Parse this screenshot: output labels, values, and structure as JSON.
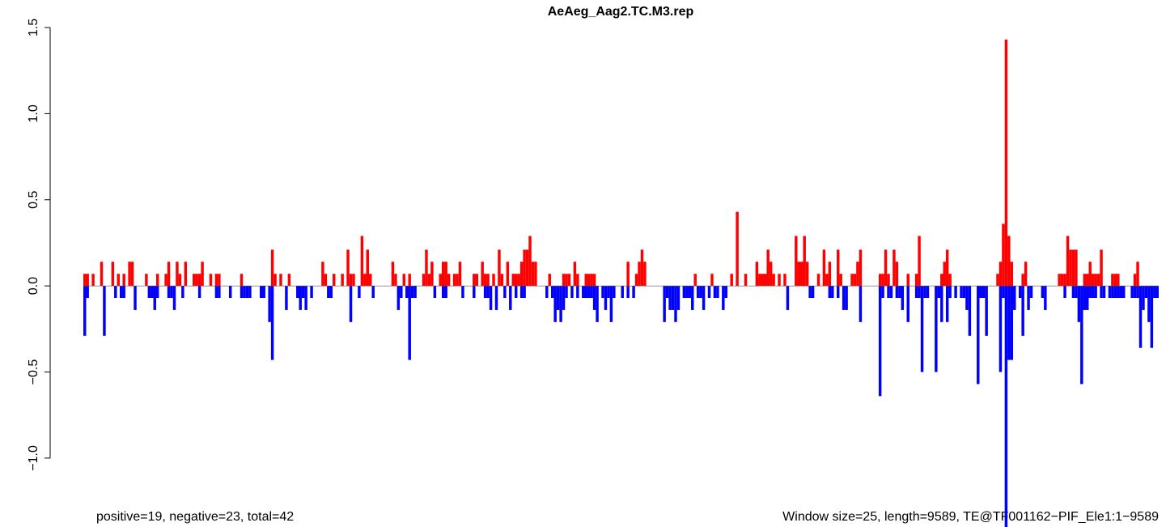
{
  "chart_data": {
    "type": "bar",
    "title": "AeAeg_Aag2.TC.M3.rep",
    "notes": [
      "positive=19, negative=23, total=42",
      "Window size=25, length=9589, TE@TF001162−PIF_Ele1:1−9589"
    ],
    "ylim": [
      -1.4,
      1.5
    ],
    "yticks": [
      {
        "value": -1.0,
        "label": "−1.0"
      },
      {
        "value": -0.5,
        "label": "−0.5"
      },
      {
        "value": 0,
        "label": "0.0"
      },
      {
        "value": 0.5,
        "label": "0.5"
      },
      {
        "value": 1.0,
        "label": "1.0"
      },
      {
        "value": 1.5,
        "label": "1.5"
      }
    ],
    "series": [
      {
        "color": "#ff0000",
        "values": [
          0.07,
          0.07,
          0,
          0.07,
          0,
          0,
          0.14,
          0,
          0,
          0,
          0.14,
          0,
          0.07,
          0,
          0.07,
          0,
          0.14,
          0.14,
          0,
          0,
          0,
          0,
          0.07,
          0,
          0,
          0,
          0.07,
          0,
          0,
          0.07,
          0.14,
          0,
          0,
          0.14,
          0.07,
          0,
          0.14,
          0,
          0,
          0.07,
          0.07,
          0.07,
          0.14,
          0,
          0,
          0.07,
          0,
          0.07,
          0.07,
          0,
          0,
          0,
          0,
          0,
          0,
          0,
          0.07,
          0,
          0,
          0,
          0,
          0,
          0,
          0,
          0,
          0,
          0,
          0.21,
          0.07,
          0,
          0.07,
          0,
          0,
          0.07,
          0,
          0,
          0,
          0,
          0,
          0,
          0,
          0,
          0,
          0,
          0,
          0.14,
          0.07,
          0,
          0,
          0.07,
          0,
          0,
          0.07,
          0,
          0.21,
          0.07,
          0.07,
          0,
          0,
          0.29,
          0.07,
          0.21,
          0.07,
          0,
          0,
          0,
          0,
          0,
          0,
          0,
          0.14,
          0.07,
          0,
          0,
          0.07,
          0,
          0.07,
          0,
          0,
          0,
          0,
          0.07,
          0.21,
          0.07,
          0.14,
          0,
          0,
          0.07,
          0.14,
          0.14,
          0.07,
          0,
          0.07,
          0.07,
          0.14,
          0,
          0,
          0,
          0,
          0.07,
          0.07,
          0,
          0.14,
          0.07,
          0.07,
          0,
          0.07,
          0,
          0.21,
          0.07,
          0,
          0.14,
          0,
          0.07,
          0.07,
          0.07,
          0.14,
          0.21,
          0.21,
          0.29,
          0.14,
          0.14,
          0,
          0,
          0,
          0,
          0.07,
          0,
          0,
          0,
          0,
          0.07,
          0.07,
          0.07,
          0,
          0.14,
          0.07,
          0,
          0,
          0.07,
          0.07,
          0.07,
          0.07,
          0,
          0,
          0,
          0,
          0,
          0,
          0,
          0,
          0,
          0,
          0,
          0.14,
          0,
          0,
          0.07,
          0.14,
          0.21,
          0.14,
          0,
          0,
          0,
          0,
          0,
          0,
          0,
          0,
          0,
          0,
          0,
          0,
          0,
          0,
          0,
          0,
          0,
          0.07,
          0,
          0,
          0,
          0,
          0,
          0.07,
          0,
          0,
          0,
          0,
          0,
          0,
          0.07,
          0,
          0.43,
          0,
          0,
          0.07,
          0,
          0,
          0,
          0.14,
          0.07,
          0.07,
          0.07,
          0.21,
          0.14,
          0.07,
          0,
          0.07,
          0,
          0.07,
          0,
          0,
          0,
          0.29,
          0.14,
          0.14,
          0.29,
          0.14,
          0,
          0,
          0,
          0.07,
          0,
          0.21,
          0.07,
          0.14,
          0,
          0,
          0.21,
          0.07,
          0,
          0,
          0,
          0.07,
          0.07,
          0.14,
          0.21,
          0,
          0,
          0,
          0,
          0,
          0,
          0.07,
          0.07,
          0.21,
          0.07,
          0,
          0.21,
          0.14,
          0,
          0,
          0,
          0.07,
          0,
          0,
          0.07,
          0.29,
          0,
          0,
          0,
          0,
          0,
          0,
          0,
          0.07,
          0.14,
          0.21,
          0.07,
          0,
          0,
          0,
          0,
          0,
          0,
          0,
          0,
          0,
          0,
          0,
          0,
          0,
          0,
          0,
          0,
          0.07,
          0.14,
          0.36,
          1.43,
          0.29,
          0.14,
          0,
          0,
          0,
          0.07,
          0.14,
          0,
          0,
          0,
          0,
          0,
          0,
          0,
          0,
          0,
          0,
          0,
          0.07,
          0.07,
          0.07,
          0.29,
          0.21,
          0.21,
          0.21,
          0,
          0,
          0.07,
          0.07,
          0.14,
          0.07,
          0.07,
          0.07,
          0.21,
          0,
          0,
          0,
          0.07,
          0.07,
          0.07,
          0,
          0,
          0,
          0,
          0,
          0.07,
          0.14,
          0,
          0,
          0,
          0,
          0,
          0,
          0
        ]
      },
      {
        "color": "#0000ff",
        "values": [
          -0.29,
          -0.07,
          0,
          0,
          0,
          0,
          0,
          -0.29,
          0,
          0,
          0,
          -0.07,
          0,
          -0.07,
          -0.07,
          0,
          0,
          0,
          -0.14,
          0,
          0,
          0,
          0,
          -0.07,
          -0.07,
          -0.14,
          -0.07,
          0,
          0,
          0,
          -0.07,
          -0.07,
          -0.14,
          0,
          0,
          -0.07,
          0,
          0,
          0,
          0,
          0,
          -0.07,
          0,
          0,
          0,
          0,
          0,
          -0.07,
          -0.07,
          0,
          0,
          0,
          -0.07,
          0,
          0,
          0,
          -0.07,
          -0.07,
          -0.07,
          -0.07,
          0,
          0,
          0,
          -0.07,
          -0.07,
          0,
          -0.21,
          -0.43,
          0,
          0,
          0,
          0,
          -0.14,
          0,
          0,
          0,
          -0.07,
          -0.14,
          -0.07,
          -0.14,
          0,
          -0.07,
          0,
          0,
          0,
          0,
          0,
          -0.07,
          -0.07,
          0,
          0,
          0,
          0,
          0,
          0,
          -0.21,
          0,
          0,
          -0.07,
          0,
          0,
          0,
          0,
          -0.07,
          0,
          0,
          0,
          0,
          0,
          0,
          0,
          0,
          -0.14,
          -0.07,
          0,
          -0.07,
          -0.43,
          -0.07,
          -0.07,
          0,
          0,
          0,
          0,
          0,
          0,
          -0.07,
          0,
          0,
          -0.07,
          -0.07,
          0,
          0,
          0,
          0,
          0,
          -0.07,
          0,
          0,
          0,
          -0.07,
          0,
          0,
          0,
          -0.07,
          -0.07,
          -0.14,
          0,
          -0.14,
          0,
          0,
          -0.07,
          0,
          -0.14,
          0,
          -0.07,
          0,
          -0.07,
          -0.07,
          0,
          0,
          0,
          0,
          0,
          0,
          0,
          -0.07,
          0,
          -0.07,
          -0.21,
          -0.14,
          -0.21,
          -0.14,
          -0.07,
          0,
          -0.07,
          0,
          -0.07,
          0,
          -0.07,
          -0.07,
          -0.07,
          -0.07,
          -0.14,
          -0.21,
          0,
          -0.07,
          -0.14,
          -0.07,
          -0.21,
          -0.07,
          0,
          0,
          -0.07,
          0,
          -0.07,
          0,
          -0.07,
          0,
          0,
          0,
          0,
          0,
          0,
          0,
          0,
          0,
          0,
          -0.21,
          -0.07,
          -0.14,
          -0.14,
          -0.21,
          -0.14,
          0,
          -0.07,
          -0.07,
          -0.07,
          -0.14,
          0,
          -0.07,
          -0.07,
          -0.14,
          0,
          -0.07,
          0,
          -0.07,
          -0.07,
          0,
          -0.14,
          -0.07,
          0,
          0,
          0,
          0,
          0,
          0,
          0,
          0,
          0,
          0,
          0,
          0,
          0,
          0,
          0,
          0,
          0,
          0,
          0,
          0,
          0,
          -0.14,
          0,
          0,
          0,
          0,
          0,
          0,
          0,
          -0.07,
          -0.07,
          0,
          0,
          0,
          0,
          0,
          -0.07,
          -0.07,
          0,
          -0.07,
          0,
          -0.14,
          -0.14,
          0,
          0,
          0,
          0,
          -0.21,
          0,
          0,
          0,
          0,
          0,
          0,
          -0.64,
          -0.07,
          0,
          -0.07,
          -0.07,
          0,
          -0.07,
          -0.07,
          -0.14,
          0,
          -0.21,
          0,
          0,
          -0.07,
          -0.07,
          -0.5,
          -0.07,
          -0.07,
          0,
          0,
          -0.5,
          -0.07,
          -0.21,
          0,
          -0.21,
          -0.07,
          0,
          -0.07,
          0,
          -0.07,
          -0.07,
          -0.14,
          -0.29,
          0,
          0,
          -0.57,
          -0.07,
          -0.07,
          -0.29,
          0,
          0,
          0,
          0,
          -0.5,
          -0.07,
          -1.43,
          -0.43,
          -0.43,
          -0.14,
          0,
          -0.07,
          -0.29,
          0,
          -0.14,
          -0.07,
          0,
          0,
          0,
          -0.07,
          -0.14,
          0,
          0,
          0,
          0,
          0,
          0,
          -0.07,
          0,
          0,
          -0.07,
          -0.07,
          -0.21,
          -0.57,
          -0.14,
          -0.14,
          -0.07,
          -0.07,
          -0.07,
          0,
          -0.07,
          -0.07,
          0,
          -0.07,
          -0.07,
          -0.07,
          -0.07,
          -0.07,
          -0.07,
          0,
          0,
          -0.07,
          -0.07,
          -0.07,
          -0.36,
          -0.14,
          -0.07,
          -0.21,
          -0.36,
          -0.07,
          -0.07
        ]
      }
    ]
  }
}
